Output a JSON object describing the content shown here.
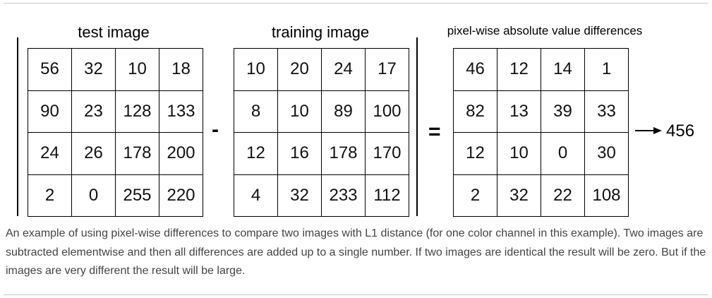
{
  "titles": {
    "test": "test image",
    "training": "training image",
    "diff": "pixel-wise absolute value differences"
  },
  "grids": {
    "test": [
      [
        56,
        32,
        10,
        18
      ],
      [
        90,
        23,
        128,
        133
      ],
      [
        24,
        26,
        178,
        200
      ],
      [
        2,
        0,
        255,
        220
      ]
    ],
    "training": [
      [
        10,
        20,
        24,
        17
      ],
      [
        8,
        10,
        89,
        100
      ],
      [
        12,
        16,
        178,
        170
      ],
      [
        4,
        32,
        233,
        112
      ]
    ],
    "diff": [
      [
        46,
        12,
        14,
        1
      ],
      [
        82,
        13,
        39,
        33
      ],
      [
        12,
        10,
        0,
        30
      ],
      [
        2,
        32,
        22,
        108
      ]
    ]
  },
  "operators": {
    "minus": "-",
    "equals": "="
  },
  "result": "456",
  "caption": "An example of using pixel-wise differences to compare two images with L1 distance (for one color channel in this example). Two images are subtracted elementwise and then all differences are added up to a single number. If two images are identical the result will be zero. But if the images are very different the result will be large."
}
